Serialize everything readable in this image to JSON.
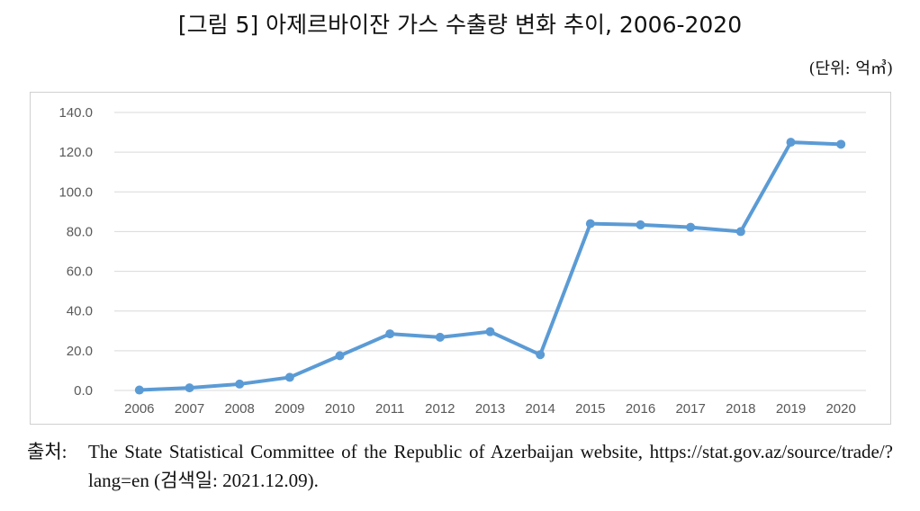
{
  "figure": {
    "title": "[그림 5] 아제르바이잔 가스 수출량 변화 추이, 2006-2020",
    "unit": "(단위: 억㎥)"
  },
  "chart_data": {
    "type": "line",
    "x": [
      "2006",
      "2007",
      "2008",
      "2009",
      "2010",
      "2011",
      "2012",
      "2013",
      "2014",
      "2015",
      "2016",
      "2017",
      "2018",
      "2019",
      "2020"
    ],
    "series": [
      {
        "values": [
          0.2,
          1.3,
          3.2,
          6.6,
          17.5,
          28.5,
          26.8,
          29.6,
          18.0,
          84.0,
          83.4,
          82.2,
          80.0,
          125.0,
          124.0
        ]
      }
    ],
    "yticks": [
      "0.0",
      "20.0",
      "40.0",
      "60.0",
      "80.0",
      "100.0",
      "120.0",
      "140.0"
    ],
    "ylim": [
      0,
      140
    ],
    "grid": true,
    "color": "#5b9bd5"
  },
  "source": {
    "label": "출처:",
    "text": "The State Statistical Committee of the Republic of Azerbaijan website, https://stat.gov.az/source/trade/?lang=en (검색일: 2021.12.09)."
  }
}
